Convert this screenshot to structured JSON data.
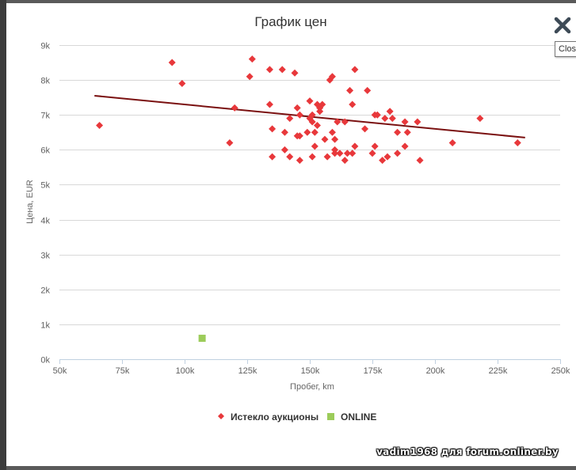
{
  "close_tooltip": "Clos",
  "watermark": "vadim1968 для forum.onliner.by",
  "chart_data": {
    "type": "scatter",
    "title": "График цен",
    "xlabel": "Пробег, km",
    "ylabel": "Цена, EUR",
    "xlim": [
      50000,
      250000
    ],
    "ylim": [
      0,
      9000
    ],
    "x_ticks": [
      50000,
      75000,
      100000,
      125000,
      150000,
      175000,
      200000,
      225000,
      250000
    ],
    "x_tick_labels": [
      "50k",
      "75k",
      "100k",
      "125k",
      "150k",
      "175k",
      "200k",
      "225k",
      "250k"
    ],
    "y_ticks": [
      0,
      1000,
      2000,
      3000,
      4000,
      5000,
      6000,
      7000,
      8000,
      9000
    ],
    "y_tick_labels": [
      "0k",
      "1k",
      "2k",
      "3k",
      "4k",
      "5k",
      "6k",
      "7k",
      "8k",
      "9k"
    ],
    "grid": "horizontal",
    "legend_position": "bottom-center",
    "series": [
      {
        "name": "Истекло аукционы",
        "marker": "diamond",
        "color": "#e8383b",
        "points": [
          [
            66000,
            6700
          ],
          [
            95000,
            8500
          ],
          [
            99000,
            7900
          ],
          [
            118000,
            6200
          ],
          [
            120000,
            7200
          ],
          [
            126000,
            8100
          ],
          [
            127000,
            8600
          ],
          [
            134000,
            8300
          ],
          [
            134000,
            7300
          ],
          [
            135000,
            6600
          ],
          [
            135000,
            5800
          ],
          [
            139000,
            8300
          ],
          [
            140000,
            6500
          ],
          [
            140000,
            6000
          ],
          [
            142000,
            5800
          ],
          [
            142000,
            6900
          ],
          [
            144000,
            8200
          ],
          [
            145000,
            7200
          ],
          [
            145000,
            6400
          ],
          [
            146000,
            6400
          ],
          [
            146000,
            7000
          ],
          [
            146000,
            5700
          ],
          [
            149000,
            6500
          ],
          [
            150000,
            7400
          ],
          [
            150000,
            6900
          ],
          [
            151000,
            7000
          ],
          [
            151000,
            6800
          ],
          [
            151000,
            5800
          ],
          [
            152000,
            6500
          ],
          [
            152000,
            6100
          ],
          [
            153000,
            7300
          ],
          [
            153000,
            6700
          ],
          [
            154000,
            7100
          ],
          [
            154000,
            7200
          ],
          [
            155000,
            7300
          ],
          [
            156000,
            6300
          ],
          [
            157000,
            5800
          ],
          [
            158000,
            8000
          ],
          [
            159000,
            8100
          ],
          [
            159000,
            6500
          ],
          [
            160000,
            6300
          ],
          [
            160000,
            6000
          ],
          [
            160000,
            5900
          ],
          [
            161000,
            6800
          ],
          [
            162000,
            5900
          ],
          [
            164000,
            5700
          ],
          [
            164000,
            6800
          ],
          [
            165000,
            5900
          ],
          [
            166000,
            7700
          ],
          [
            167000,
            5900
          ],
          [
            167000,
            7300
          ],
          [
            168000,
            6100
          ],
          [
            168000,
            8300
          ],
          [
            172000,
            6600
          ],
          [
            173000,
            7700
          ],
          [
            175000,
            5900
          ],
          [
            176000,
            6100
          ],
          [
            176000,
            7000
          ],
          [
            177000,
            7000
          ],
          [
            179000,
            5700
          ],
          [
            180000,
            6900
          ],
          [
            181000,
            5800
          ],
          [
            182000,
            7100
          ],
          [
            183000,
            6900
          ],
          [
            185000,
            6500
          ],
          [
            185000,
            5900
          ],
          [
            188000,
            6100
          ],
          [
            188000,
            6800
          ],
          [
            189000,
            6500
          ],
          [
            193000,
            6800
          ],
          [
            194000,
            5700
          ],
          [
            207000,
            6200
          ],
          [
            218000,
            6900
          ],
          [
            233000,
            6200
          ]
        ]
      },
      {
        "name": "ONLINE",
        "marker": "square",
        "color": "#9ccc5a",
        "points": [
          [
            107000,
            600
          ]
        ]
      }
    ],
    "trend_line": {
      "color": "#7a1010",
      "points": [
        [
          64000,
          7550
        ],
        [
          236000,
          6350
        ]
      ]
    }
  }
}
